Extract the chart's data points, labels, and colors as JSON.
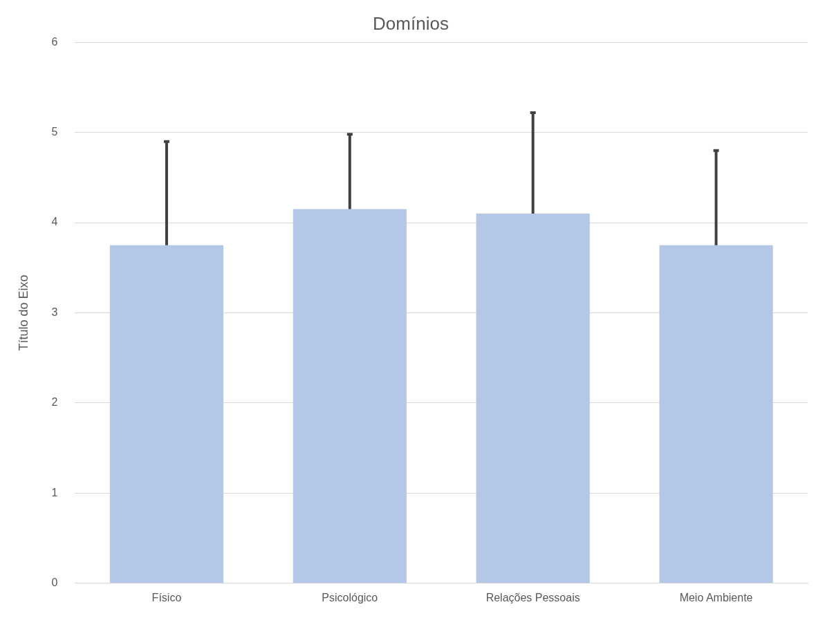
{
  "chart_data": {
    "type": "bar",
    "title": "Domínios",
    "ylabel": "Título do Eixo",
    "categories": [
      "Físico",
      "Psicológico",
      "Relações Pessoais",
      "Meio Ambiente"
    ],
    "values": [
      3.75,
      4.15,
      4.1,
      3.75
    ],
    "errors": [
      [
        3.75,
        4.9
      ],
      [
        4.15,
        4.98
      ],
      [
        4.1,
        5.22
      ],
      [
        3.75,
        4.8
      ]
    ],
    "color": "#b4c7e7",
    "ylim": [
      0,
      6
    ],
    "yticks": [
      0,
      1,
      2,
      3,
      4,
      5,
      6
    ],
    "grid": "y",
    "legend": false
  }
}
